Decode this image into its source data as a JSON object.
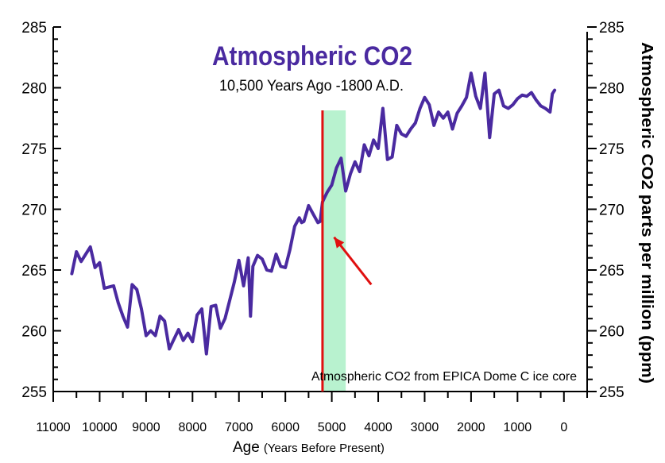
{
  "colors": {
    "series": "#4a2aa0",
    "title": "#4a2aa0",
    "marker_line": "#e01010",
    "arrow": "#e01010",
    "band": "#b8f2cf",
    "axis": "#000000"
  },
  "chart_data": {
    "type": "line",
    "title": "Atmospheric CO2",
    "subtitle": "10,500 Years Ago -1800 A.D.",
    "xlabel": "Age",
    "xlabel_note": "(Years Before Present)",
    "ylabel_right": "Atmospheric CO2 parts per million  (ppm)",
    "annotation": "Atmospheric CO2 from EPICA Dome C ice core",
    "xlim": [
      11000,
      -500
    ],
    "ylim": [
      255,
      285
    ],
    "x_ticks": [
      "11000",
      "10000",
      "9000",
      "8000",
      "7000",
      "6000",
      "5000",
      "4000",
      "3000",
      "2000",
      "1000",
      "0"
    ],
    "y_ticks_left": [
      "255",
      "260",
      "265",
      "270",
      "275",
      "280",
      "285"
    ],
    "y_ticks_right": [
      "255",
      "260",
      "265",
      "270",
      "275",
      "280",
      "285"
    ],
    "grid": false,
    "vertical_marker_age": 5200,
    "highlight_band": [
      5200,
      4700
    ],
    "arrow": {
      "from": [
        4150,
        263.8
      ],
      "to": [
        4950,
        267.7
      ]
    },
    "series": [
      {
        "x": [
          10600,
          10500,
          10400,
          10300,
          10200,
          10100,
          10000,
          9900,
          9800,
          9700,
          9600,
          9500,
          9400,
          9300,
          9200,
          9100,
          9000,
          8900,
          8800,
          8700,
          8600,
          8500,
          8400,
          8300,
          8200,
          8100,
          8000,
          7900,
          7800,
          7700,
          7600,
          7500,
          7400,
          7300,
          7200,
          7100,
          7000,
          6900,
          6800,
          6750,
          6700,
          6600,
          6500,
          6400,
          6300,
          6200,
          6100,
          6000,
          5900,
          5800,
          5700,
          5650,
          5600,
          5500,
          5400,
          5300,
          5250,
          5200,
          5150,
          5100,
          5000,
          4900,
          4800,
          4700,
          4600,
          4500,
          4400,
          4300,
          4200,
          4100,
          4000,
          3900,
          3800,
          3700,
          3600,
          3500,
          3400,
          3300,
          3200,
          3100,
          3000,
          2900,
          2800,
          2700,
          2600,
          2500,
          2400,
          2300,
          2200,
          2100,
          2000,
          1900,
          1800,
          1700,
          1600,
          1500,
          1400,
          1300,
          1200,
          1100,
          1000,
          900,
          800,
          700,
          600,
          500,
          400,
          300,
          250,
          200
        ],
        "y": [
          264.7,
          266.5,
          265.7,
          266.3,
          266.9,
          265.2,
          265.6,
          263.5,
          263.6,
          263.7,
          262.3,
          261.2,
          260.3,
          263.8,
          263.4,
          261.8,
          259.6,
          260.0,
          259.6,
          261.2,
          260.8,
          258.5,
          259.3,
          260.1,
          259.2,
          259.8,
          259.1,
          261.3,
          261.8,
          258.1,
          262.0,
          262.1,
          260.2,
          261.0,
          262.5,
          264.0,
          265.8,
          263.7,
          266.0,
          261.2,
          265.3,
          266.2,
          265.9,
          265.0,
          264.9,
          266.3,
          265.3,
          265.2,
          266.7,
          268.6,
          269.3,
          268.9,
          269.0,
          270.3,
          269.6,
          268.9,
          269.0,
          270.6,
          271.0,
          271.4,
          272.0,
          273.4,
          274.2,
          271.5,
          272.9,
          273.9,
          273.1,
          275.3,
          274.4,
          275.7,
          275.0,
          278.3,
          274.1,
          274.3,
          276.9,
          276.2,
          276.0,
          276.6,
          277.1,
          278.3,
          279.2,
          278.6,
          276.9,
          278.0,
          277.5,
          278.0,
          276.6,
          277.9,
          278.5,
          279.2,
          281.2,
          279.3,
          278.3,
          281.2,
          275.9,
          279.5,
          279.8,
          278.5,
          278.3,
          278.6,
          279.1,
          279.4,
          279.3,
          279.6,
          279.0,
          278.5,
          278.3,
          278.0,
          279.5,
          279.8
        ]
      }
    ]
  }
}
